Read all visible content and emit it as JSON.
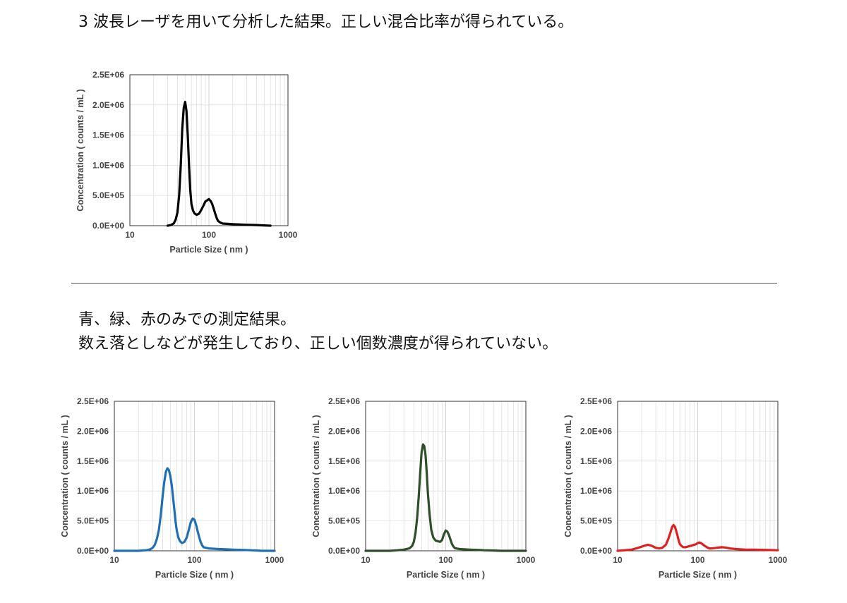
{
  "captions": {
    "top": "3 波長レーザを用いて分析した結果。正しい混合比率が得られている。",
    "bottom_line1": "青、緑、赤のみでの測定結果。",
    "bottom_line2": "数え落としなどが発生しており、正しい個数濃度が得られていない。"
  },
  "chart_data": [
    {
      "type": "line",
      "series": [
        {
          "color": "#000000",
          "x": [
            30,
            33,
            36,
            38,
            40,
            42,
            44,
            46,
            48,
            50,
            52,
            54,
            56,
            58,
            60,
            63,
            66,
            70,
            75,
            80,
            85,
            90,
            95,
            100,
            105,
            110,
            115,
            120,
            125,
            130,
            140,
            150,
            170,
            200,
            250,
            300,
            400,
            500,
            600
          ],
          "y": [
            0,
            10000,
            40000,
            100000,
            220000,
            500000,
            1000000,
            1600000,
            1950000,
            2050000,
            1900000,
            1500000,
            1000000,
            600000,
            360000,
            250000,
            200000,
            180000,
            200000,
            260000,
            330000,
            400000,
            420000,
            440000,
            410000,
            360000,
            280000,
            200000,
            130000,
            80000,
            50000,
            35000,
            30000,
            25000,
            20000,
            15000,
            10000,
            5000,
            0
          ]
        }
      ],
      "xlabel": "Particle Size ( nm )",
      "ylabel": "Concentration ( counts / mL )",
      "xscale": "log",
      "xlim": [
        10,
        1000
      ],
      "ylim": [
        0,
        2500000
      ],
      "xticks": [
        "10",
        "100",
        "1000"
      ],
      "yticks": [
        "0.0E+00",
        "5.0E+05",
        "1.0E+06",
        "1.5E+06",
        "2.0E+06",
        "2.5E+06"
      ],
      "grid": true
    },
    {
      "type": "line",
      "series": [
        {
          "color": "#1f6fb5",
          "x": [
            10,
            20,
            25,
            28,
            30,
            32,
            34,
            36,
            38,
            40,
            42,
            44,
            46,
            48,
            50,
            52,
            54,
            56,
            58,
            60,
            63,
            66,
            70,
            75,
            80,
            85,
            90,
            95,
            100,
            105,
            110,
            115,
            120,
            125,
            130,
            140,
            150,
            170,
            200,
            250,
            300,
            400,
            500,
            700,
            1000
          ],
          "y": [
            0,
            0,
            10000,
            25000,
            50000,
            100000,
            200000,
            350000,
            600000,
            900000,
            1150000,
            1320000,
            1380000,
            1350000,
            1250000,
            1100000,
            900000,
            700000,
            500000,
            350000,
            220000,
            160000,
            130000,
            150000,
            220000,
            350000,
            480000,
            540000,
            520000,
            430000,
            320000,
            220000,
            140000,
            90000,
            60000,
            50000,
            40000,
            35000,
            30000,
            25000,
            20000,
            15000,
            10000,
            0,
            0
          ]
        }
      ],
      "xlabel": "Particle Size ( nm )",
      "ylabel": "Concentration ( counts / mL )",
      "xscale": "log",
      "xlim": [
        10,
        1000
      ],
      "ylim": [
        0,
        2500000
      ],
      "xticks": [
        "10",
        "100",
        "1000"
      ],
      "yticks": [
        "0.0E+00",
        "5.0E+05",
        "1.0E+06",
        "1.5E+06",
        "2.0E+06",
        "2.5E+06"
      ],
      "grid": true
    },
    {
      "type": "line",
      "series": [
        {
          "color": "#2f4f2a",
          "x": [
            10,
            20,
            25,
            30,
            35,
            38,
            40,
            42,
            44,
            46,
            48,
            50,
            52,
            54,
            56,
            58,
            60,
            63,
            66,
            70,
            75,
            80,
            85,
            90,
            95,
            100,
            105,
            110,
            115,
            120,
            125,
            130,
            140,
            150,
            170,
            200,
            250,
            300,
            400,
            500,
            700,
            1000
          ],
          "y": [
            0,
            0,
            10000,
            20000,
            40000,
            80000,
            150000,
            300000,
            550000,
            900000,
            1300000,
            1650000,
            1780000,
            1750000,
            1600000,
            1300000,
            950000,
            600000,
            350000,
            220000,
            170000,
            160000,
            150000,
            180000,
            280000,
            340000,
            320000,
            260000,
            180000,
            110000,
            70000,
            45000,
            35000,
            30000,
            25000,
            20000,
            15000,
            10000,
            5000,
            0,
            0,
            0
          ]
        }
      ],
      "xlabel": "Particle Size ( nm )",
      "ylabel": "Concentration ( counts / mL )",
      "xscale": "log",
      "xlim": [
        10,
        1000
      ],
      "ylim": [
        0,
        2500000
      ],
      "xticks": [
        "10",
        "100",
        "1000"
      ],
      "yticks": [
        "0.0E+00",
        "5.0E+05",
        "1.0E+06",
        "1.5E+06",
        "2.0E+06",
        "2.5E+06"
      ],
      "grid": true
    },
    {
      "type": "line",
      "series": [
        {
          "color": "#e02020",
          "x": [
            10,
            15,
            18,
            20,
            22,
            24,
            26,
            28,
            30,
            33,
            36,
            40,
            43,
            46,
            48,
            50,
            52,
            54,
            56,
            58,
            60,
            63,
            66,
            70,
            75,
            80,
            85,
            90,
            95,
            100,
            105,
            110,
            115,
            120,
            130,
            140,
            150,
            170,
            200,
            220,
            250,
            300,
            400,
            500,
            700,
            1000
          ],
          "y": [
            0,
            20000,
            50000,
            70000,
            90000,
            100000,
            90000,
            70000,
            50000,
            40000,
            50000,
            100000,
            200000,
            320000,
            400000,
            430000,
            400000,
            330000,
            250000,
            170000,
            110000,
            80000,
            60000,
            60000,
            70000,
            80000,
            90000,
            100000,
            110000,
            130000,
            140000,
            130000,
            110000,
            90000,
            60000,
            40000,
            40000,
            50000,
            60000,
            55000,
            40000,
            30000,
            20000,
            20000,
            15000,
            10000
          ]
        }
      ],
      "xlabel": "Particle Size ( nm )",
      "ylabel": "Concentration ( counts / mL )",
      "xscale": "log",
      "xlim": [
        10,
        1000
      ],
      "ylim": [
        0,
        2500000
      ],
      "xticks": [
        "10",
        "100",
        "1000"
      ],
      "yticks": [
        "0.0E+00",
        "5.0E+05",
        "1.0E+06",
        "1.5E+06",
        "2.0E+06",
        "2.5E+06"
      ],
      "grid": true
    }
  ]
}
